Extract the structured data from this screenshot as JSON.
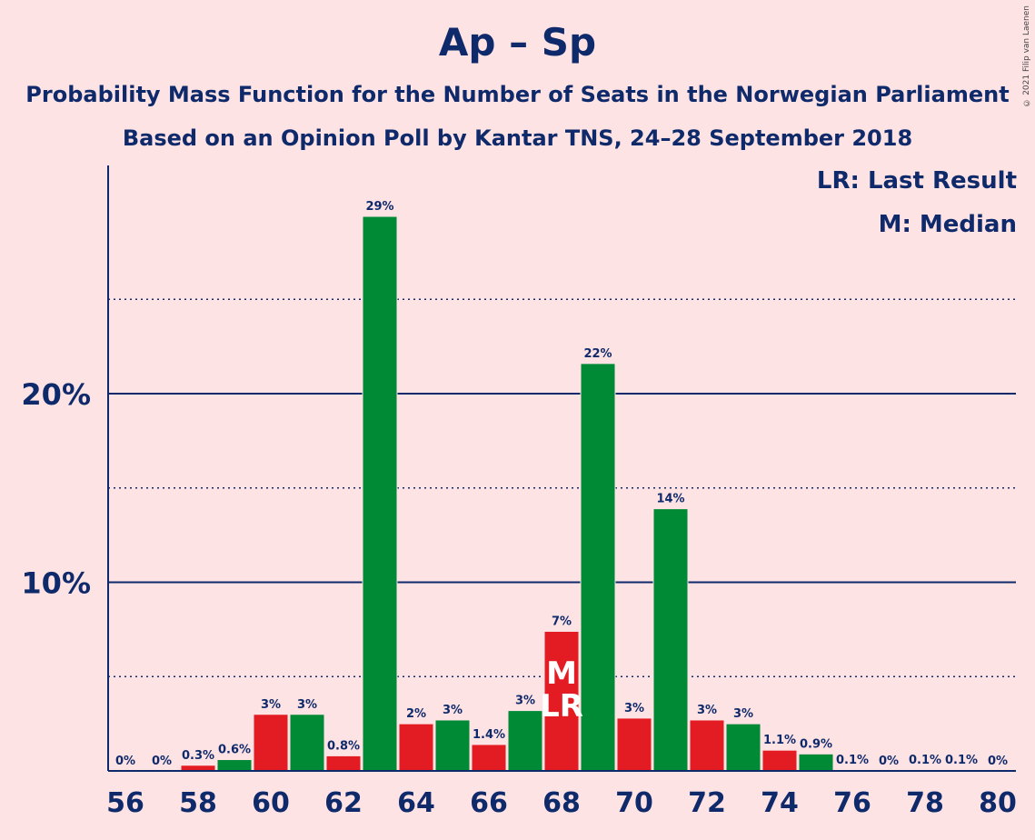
{
  "chart_data": {
    "type": "bar",
    "title": "Ap – Sp",
    "subtitle": "Probability Mass Function for the Number of Seats in the Norwegian Parliament",
    "subtitle2": "Based on an Opinion Poll by Kantar TNS, 24–28 September 2018",
    "copyright": "© 2021 Filip van Laenen",
    "legend": [
      "LR: Last Result",
      "M: Median"
    ],
    "legend_position": "top-right",
    "x": [
      56,
      57,
      58,
      59,
      60,
      61,
      62,
      63,
      64,
      65,
      66,
      67,
      68,
      69,
      70,
      71,
      72,
      73,
      74,
      75,
      76,
      77,
      78,
      79,
      80
    ],
    "values": [
      0,
      0,
      0.3,
      0.6,
      3.0,
      3.0,
      0.8,
      29.4,
      2.5,
      2.7,
      1.4,
      3.2,
      7.4,
      21.6,
      2.8,
      13.9,
      2.7,
      2.5,
      1.1,
      0.9,
      0.05,
      0,
      0.05,
      0.05,
      0
    ],
    "labels": [
      "0%",
      "0%",
      "0.3%",
      "0.6%",
      "3%",
      "3%",
      "0.8%",
      "29%",
      "2%",
      "3%",
      "1.4%",
      "3%",
      "7%",
      "22%",
      "3%",
      "14%",
      "3%",
      "3%",
      "1.1%",
      "0.9%",
      "0.1%",
      "0%",
      "0.1%",
      "0.1%",
      "0%"
    ],
    "x_tick_labels": [
      "56",
      "58",
      "60",
      "62",
      "64",
      "66",
      "68",
      "70",
      "72",
      "74",
      "76",
      "78",
      "80"
    ],
    "y_tick_labels": [
      "10%",
      "20%"
    ],
    "y_ticks": [
      10,
      20
    ],
    "y_minor_ticks": [
      5,
      15,
      25
    ],
    "ylim": [
      0,
      32.1
    ],
    "median": 68,
    "last_result": 68,
    "markers": {
      "median": "M",
      "last_result": "LR"
    },
    "colors": {
      "even": "#e31b23",
      "odd": "#008a35",
      "axis": "#0f2a6b",
      "background": "#fde3e4"
    }
  }
}
